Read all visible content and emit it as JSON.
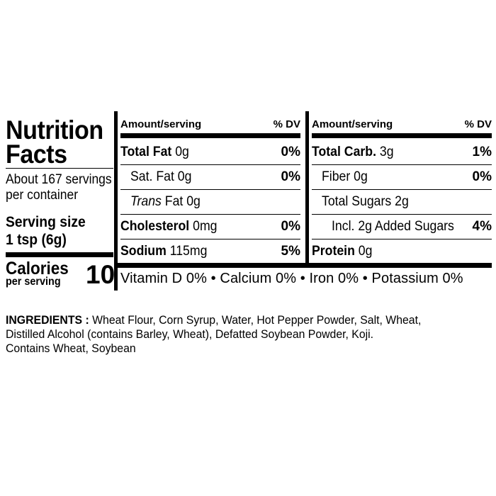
{
  "panel": {
    "title_line1": "Nutrition",
    "title_line2": "Facts",
    "servings_line1": "About 167 servings",
    "servings_line2": "per container",
    "serving_size_line1": "Serving size",
    "serving_size_line2": "1 tsp (6g)",
    "calories_label": "Calories",
    "calories_sub": "per serving",
    "calories_value": "10"
  },
  "columns": [
    {
      "header_left": "Amount/serving",
      "header_right": "% DV",
      "rows": [
        {
          "name": "Total Fat",
          "amount": "0g",
          "dv": "0%",
          "bold": true,
          "indent": 0
        },
        {
          "name": "Sat. Fat",
          "amount": "0g",
          "dv": "0%",
          "bold": false,
          "indent": 1
        },
        {
          "name": "Trans",
          "name_suffix": "Fat",
          "amount": "0g",
          "dv": "",
          "bold": false,
          "indent": 1
        },
        {
          "name": "Cholesterol",
          "amount": "0mg",
          "dv": "0%",
          "bold": true,
          "indent": 0
        },
        {
          "name": "Sodium",
          "amount": "115mg",
          "dv": "5%",
          "bold": true,
          "indent": 0
        }
      ]
    },
    {
      "header_left": "Amount/serving",
      "header_right": "% DV",
      "rows": [
        {
          "name": "Total Carb.",
          "amount": "3g",
          "dv": "1%",
          "bold": true,
          "indent": 0
        },
        {
          "name": "Fiber",
          "amount": "0g",
          "dv": "0%",
          "bold": false,
          "indent": 1
        },
        {
          "name": "Total Sugars",
          "amount": "2g",
          "dv": "",
          "bold": false,
          "indent": 1
        },
        {
          "name": "Incl. 2g Added Sugars",
          "amount": "",
          "dv": "4%",
          "bold": false,
          "indent": 2
        },
        {
          "name": "Protein",
          "amount": "0g",
          "dv": "",
          "bold": true,
          "indent": 0
        }
      ]
    }
  ],
  "vitamins": "Vitamin D 0% • Calcium 0% • Iron 0% • Potassium 0%",
  "ingredients": {
    "label": "INGREDIENTS :",
    "text_line1": "Wheat Flour, Corn Syrup, Water, Hot Pepper Powder, Salt, Wheat,",
    "text_line2": "Distilled Alcohol (contains Barley, Wheat), Defatted Soybean Powder, Koji.",
    "text_line3": "Contains Wheat, Soybean"
  }
}
